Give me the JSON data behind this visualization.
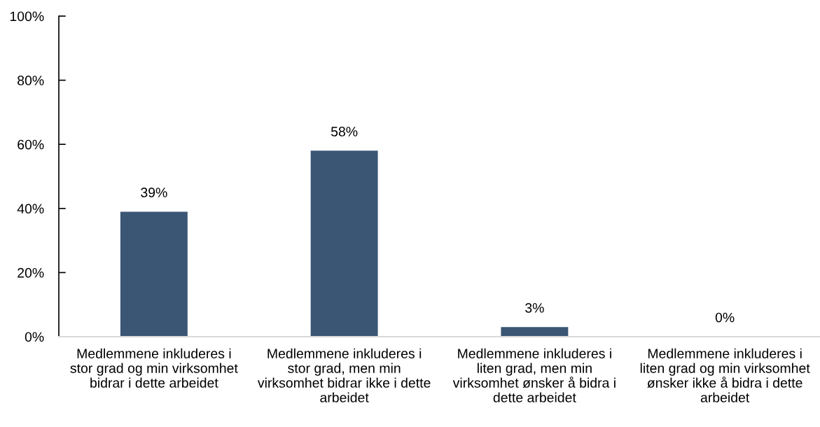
{
  "chart_data": {
    "type": "bar",
    "categories": [
      "Medlemmene inkluderes i stor grad og min virksomhet bidrar i dette arbeidet",
      "Medlemmene inkluderes i stor grad, men min virksomhet bidrar ikke i dette arbeidet",
      "Medlemmene inkluderes i liten grad, men min virksomhet ønsker å bidra i dette arbeidet",
      "Medlemmene inkluderes i liten grad og min virksomhet ønsker ikke å bidra i dette arbeidet"
    ],
    "values": [
      39,
      58,
      3,
      0
    ],
    "color": "#3b5674",
    "value_labels": [
      "39%",
      "58%",
      "3%",
      "0%"
    ],
    "ylim": [
      0,
      100
    ],
    "yticks": [
      {
        "value": 0,
        "label": "0%"
      },
      {
        "value": 20,
        "label": "20%"
      },
      {
        "value": 40,
        "label": "40%"
      },
      {
        "value": 60,
        "label": "60%"
      },
      {
        "value": 80,
        "label": "80%"
      },
      {
        "value": 100,
        "label": "100%"
      }
    ]
  }
}
